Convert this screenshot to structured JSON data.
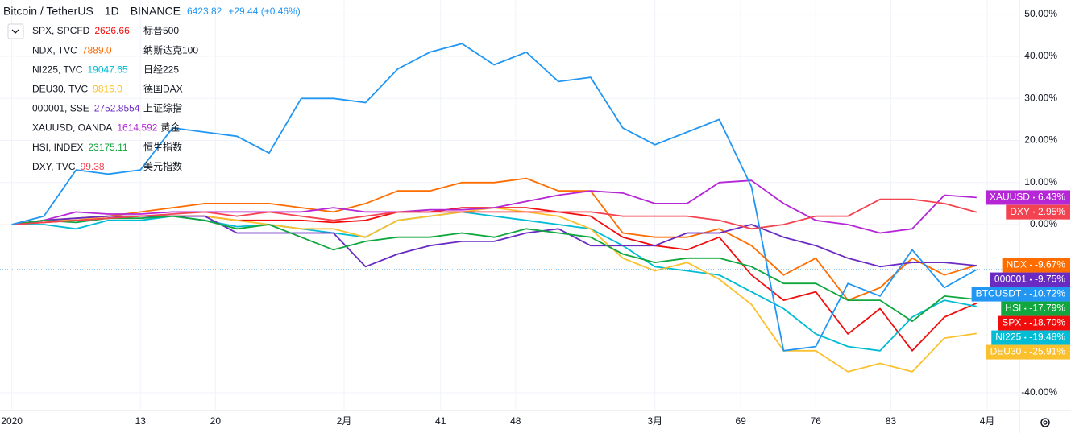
{
  "chart_data": {
    "type": "line",
    "header": {
      "symbol": "Bitcoin / TetherUS",
      "interval": "1D",
      "exchange": "BINANCE",
      "price": "6423.82",
      "change": "+29.44 (+0.46%)"
    },
    "x": [
      1,
      4,
      7,
      10,
      13,
      16,
      19,
      22,
      25,
      28,
      31,
      34,
      37,
      40,
      43,
      46,
      49,
      52,
      55,
      58,
      61,
      64,
      67,
      70,
      73,
      76,
      79,
      82,
      85,
      88,
      91
    ],
    "xlim": [
      -0.1,
      95
    ],
    "xticks": [
      {
        "value": 1,
        "label": "2020"
      },
      13,
      20,
      {
        "value": 32,
        "label": "2月"
      },
      41,
      48,
      {
        "value": 61,
        "label": "3月"
      },
      69,
      76,
      83,
      {
        "value": 92,
        "label": "4月"
      }
    ],
    "ylim": [
      -44.2,
      53.4
    ],
    "yticks": [
      {
        "value": 50,
        "label": "50.00%"
      },
      {
        "value": 40,
        "label": "40.00%"
      },
      {
        "value": 30,
        "label": "30.00%"
      },
      {
        "value": 20,
        "label": "20.00%"
      },
      {
        "value": 10,
        "label": "10.00%"
      },
      {
        "value": 0,
        "label": "0.00%"
      },
      {
        "value": -40,
        "label": "-40.00%"
      }
    ],
    "grid": true,
    "series": [
      {
        "name": "BTCUSDT",
        "color": "#2196f3",
        "values": [
          0,
          2,
          13,
          12,
          13,
          23,
          22,
          21,
          17,
          30,
          30,
          29,
          37,
          41,
          43,
          38,
          41,
          34,
          35,
          23,
          19,
          22,
          25,
          9,
          -30,
          -29,
          -14,
          -17,
          -6,
          -15,
          -10.72
        ],
        "value_labels": [
          null,
          null,
          null,
          null,
          null,
          null,
          null,
          null,
          null,
          null,
          null,
          null,
          null,
          null,
          null,
          null,
          null,
          null,
          null,
          null,
          null,
          null,
          null,
          null,
          null,
          null,
          null,
          null,
          null,
          null,
          "-10.72%"
        ]
      },
      {
        "name": "SPX",
        "legend": "SPX, SPCFD",
        "price": "2626.66",
        "desc": "标普500",
        "color": "#f20d0d",
        "values": [
          0,
          0.5,
          1,
          1.5,
          2,
          2,
          2,
          1,
          1,
          1,
          0.5,
          1,
          3,
          3,
          4,
          4,
          4,
          3,
          2,
          -3,
          -5,
          -6,
          -3,
          -12,
          -18,
          -16,
          -26,
          -20,
          -30,
          -22,
          -18.7
        ],
        "value_labels": [
          null,
          null,
          null,
          null,
          null,
          null,
          null,
          null,
          null,
          null,
          null,
          null,
          null,
          null,
          null,
          null,
          null,
          null,
          null,
          null,
          null,
          null,
          null,
          null,
          null,
          null,
          null,
          null,
          null,
          null,
          "-18.70%"
        ]
      },
      {
        "name": "NDX",
        "legend": "NDX, TVC",
        "price": "7889.0",
        "desc": "纳斯达克100",
        "color": "#ff6d00",
        "values": [
          0,
          1,
          1.5,
          2,
          3,
          4,
          5,
          5,
          5,
          4,
          3,
          5,
          8,
          8,
          10,
          10,
          11,
          8,
          8,
          -2,
          -3,
          -3,
          -1,
          -5,
          -12,
          -8,
          -18,
          -15,
          -8,
          -12,
          -9.67
        ],
        "value_labels": [
          null,
          null,
          null,
          null,
          null,
          null,
          null,
          null,
          null,
          null,
          null,
          null,
          null,
          null,
          null,
          null,
          null,
          null,
          null,
          null,
          null,
          null,
          null,
          null,
          null,
          null,
          null,
          null,
          null,
          null,
          "-9.67%"
        ]
      },
      {
        "name": "NI225",
        "legend": "NI225, TVC",
        "price": "19047.65",
        "desc": "日经225",
        "color": "#00bcd4",
        "values": [
          0,
          0,
          -1,
          1,
          1,
          2,
          1,
          -0.5,
          0,
          -1,
          -2,
          -3,
          1,
          2,
          3,
          2,
          1,
          0,
          -1,
          -5,
          -10,
          -11,
          -12,
          -16,
          -20,
          -26,
          -29,
          -30,
          -22,
          -18,
          -19.48
        ],
        "value_labels": [
          null,
          null,
          null,
          null,
          null,
          null,
          null,
          null,
          null,
          null,
          null,
          null,
          null,
          null,
          null,
          null,
          null,
          null,
          null,
          null,
          null,
          null,
          null,
          null,
          null,
          null,
          null,
          null,
          null,
          null,
          "-19.48%"
        ]
      },
      {
        "name": "DEU30",
        "legend": "DEU30, TVC",
        "price": "9816.0",
        "desc": "德国DAX",
        "color": "#fbc02d",
        "values": [
          0,
          1,
          1,
          2,
          2,
          2,
          2,
          1,
          0,
          -1,
          -1,
          -3,
          1,
          2,
          3,
          4,
          3,
          2,
          -1,
          -8,
          -11,
          -9,
          -13,
          -19,
          -30,
          -30,
          -35,
          -33,
          -35,
          -27,
          -25.91
        ],
        "value_labels": [
          null,
          null,
          null,
          null,
          null,
          null,
          null,
          null,
          null,
          null,
          null,
          null,
          null,
          null,
          null,
          null,
          null,
          null,
          null,
          null,
          null,
          null,
          null,
          null,
          null,
          null,
          null,
          null,
          null,
          null,
          "-25.91%"
        ]
      },
      {
        "name": "000001",
        "legend": "000001, SSE",
        "price": "2752.8554",
        "desc": "上证综指",
        "color": "#6a2bc2",
        "values": [
          0,
          1,
          1.5,
          2,
          2,
          2,
          2,
          -2,
          -2,
          -2,
          -2,
          -10,
          -7,
          -5,
          -4,
          -4,
          -2,
          -1,
          -5,
          -5,
          -5,
          -2,
          -2,
          0,
          -3,
          -5,
          -8,
          -10,
          -9,
          -9,
          -9.75
        ],
        "value_labels": [
          null,
          null,
          null,
          null,
          null,
          null,
          null,
          null,
          null,
          null,
          null,
          null,
          null,
          null,
          null,
          null,
          null,
          null,
          null,
          null,
          null,
          null,
          null,
          null,
          null,
          null,
          null,
          null,
          null,
          null,
          "-9.75%"
        ]
      },
      {
        "name": "XAUUSD",
        "legend": "XAUUSD, OANDA",
        "price": "1614.592",
        "desc": "黄金",
        "color": "#b526d6",
        "values": [
          0,
          1,
          3,
          2.5,
          2.5,
          3,
          3,
          3,
          3,
          3,
          4,
          3,
          3,
          3.5,
          3.5,
          4,
          5.5,
          7,
          8,
          7.5,
          5,
          5,
          10,
          10.5,
          5,
          1,
          0,
          -2,
          -1,
          7,
          6.43
        ],
        "value_labels": [
          null,
          null,
          null,
          null,
          null,
          null,
          null,
          null,
          null,
          null,
          null,
          null,
          null,
          null,
          null,
          null,
          null,
          null,
          null,
          null,
          null,
          null,
          null,
          null,
          null,
          null,
          null,
          null,
          null,
          null,
          "6.43%"
        ]
      },
      {
        "name": "HSI",
        "legend": "HSI, INDEX",
        "price": "23175.11",
        "desc": "恒生指数",
        "color": "#12a63f",
        "values": [
          0,
          1,
          0.5,
          1.5,
          1.5,
          2,
          1,
          -1,
          0,
          -3,
          -6,
          -4,
          -3,
          -3,
          -2,
          -3,
          -1,
          -2,
          -3,
          -7,
          -9,
          -8,
          -8,
          -10,
          -14,
          -14,
          -18,
          -18,
          -23,
          -17,
          -17.79
        ],
        "value_labels": [
          null,
          null,
          null,
          null,
          null,
          null,
          null,
          null,
          null,
          null,
          null,
          null,
          null,
          null,
          null,
          null,
          null,
          null,
          null,
          null,
          null,
          null,
          null,
          null,
          null,
          null,
          null,
          null,
          null,
          null,
          "-17.79%"
        ]
      },
      {
        "name": "DXY",
        "legend": "DXY, TVC",
        "price": "99.38",
        "desc": "美元指数",
        "color": "#f44350",
        "values": [
          0,
          0.5,
          1,
          1.5,
          2,
          2.5,
          3,
          2,
          3,
          2,
          1,
          2,
          3,
          3,
          3,
          3,
          3,
          3,
          3,
          2,
          2,
          2,
          1,
          -1,
          0,
          2,
          2,
          6,
          6,
          5,
          2.95
        ],
        "value_labels": [
          null,
          null,
          null,
          null,
          null,
          null,
          null,
          null,
          null,
          null,
          null,
          null,
          null,
          null,
          null,
          null,
          null,
          null,
          null,
          null,
          null,
          null,
          null,
          null,
          null,
          null,
          null,
          null,
          null,
          null,
          "2.95%"
        ]
      }
    ]
  }
}
